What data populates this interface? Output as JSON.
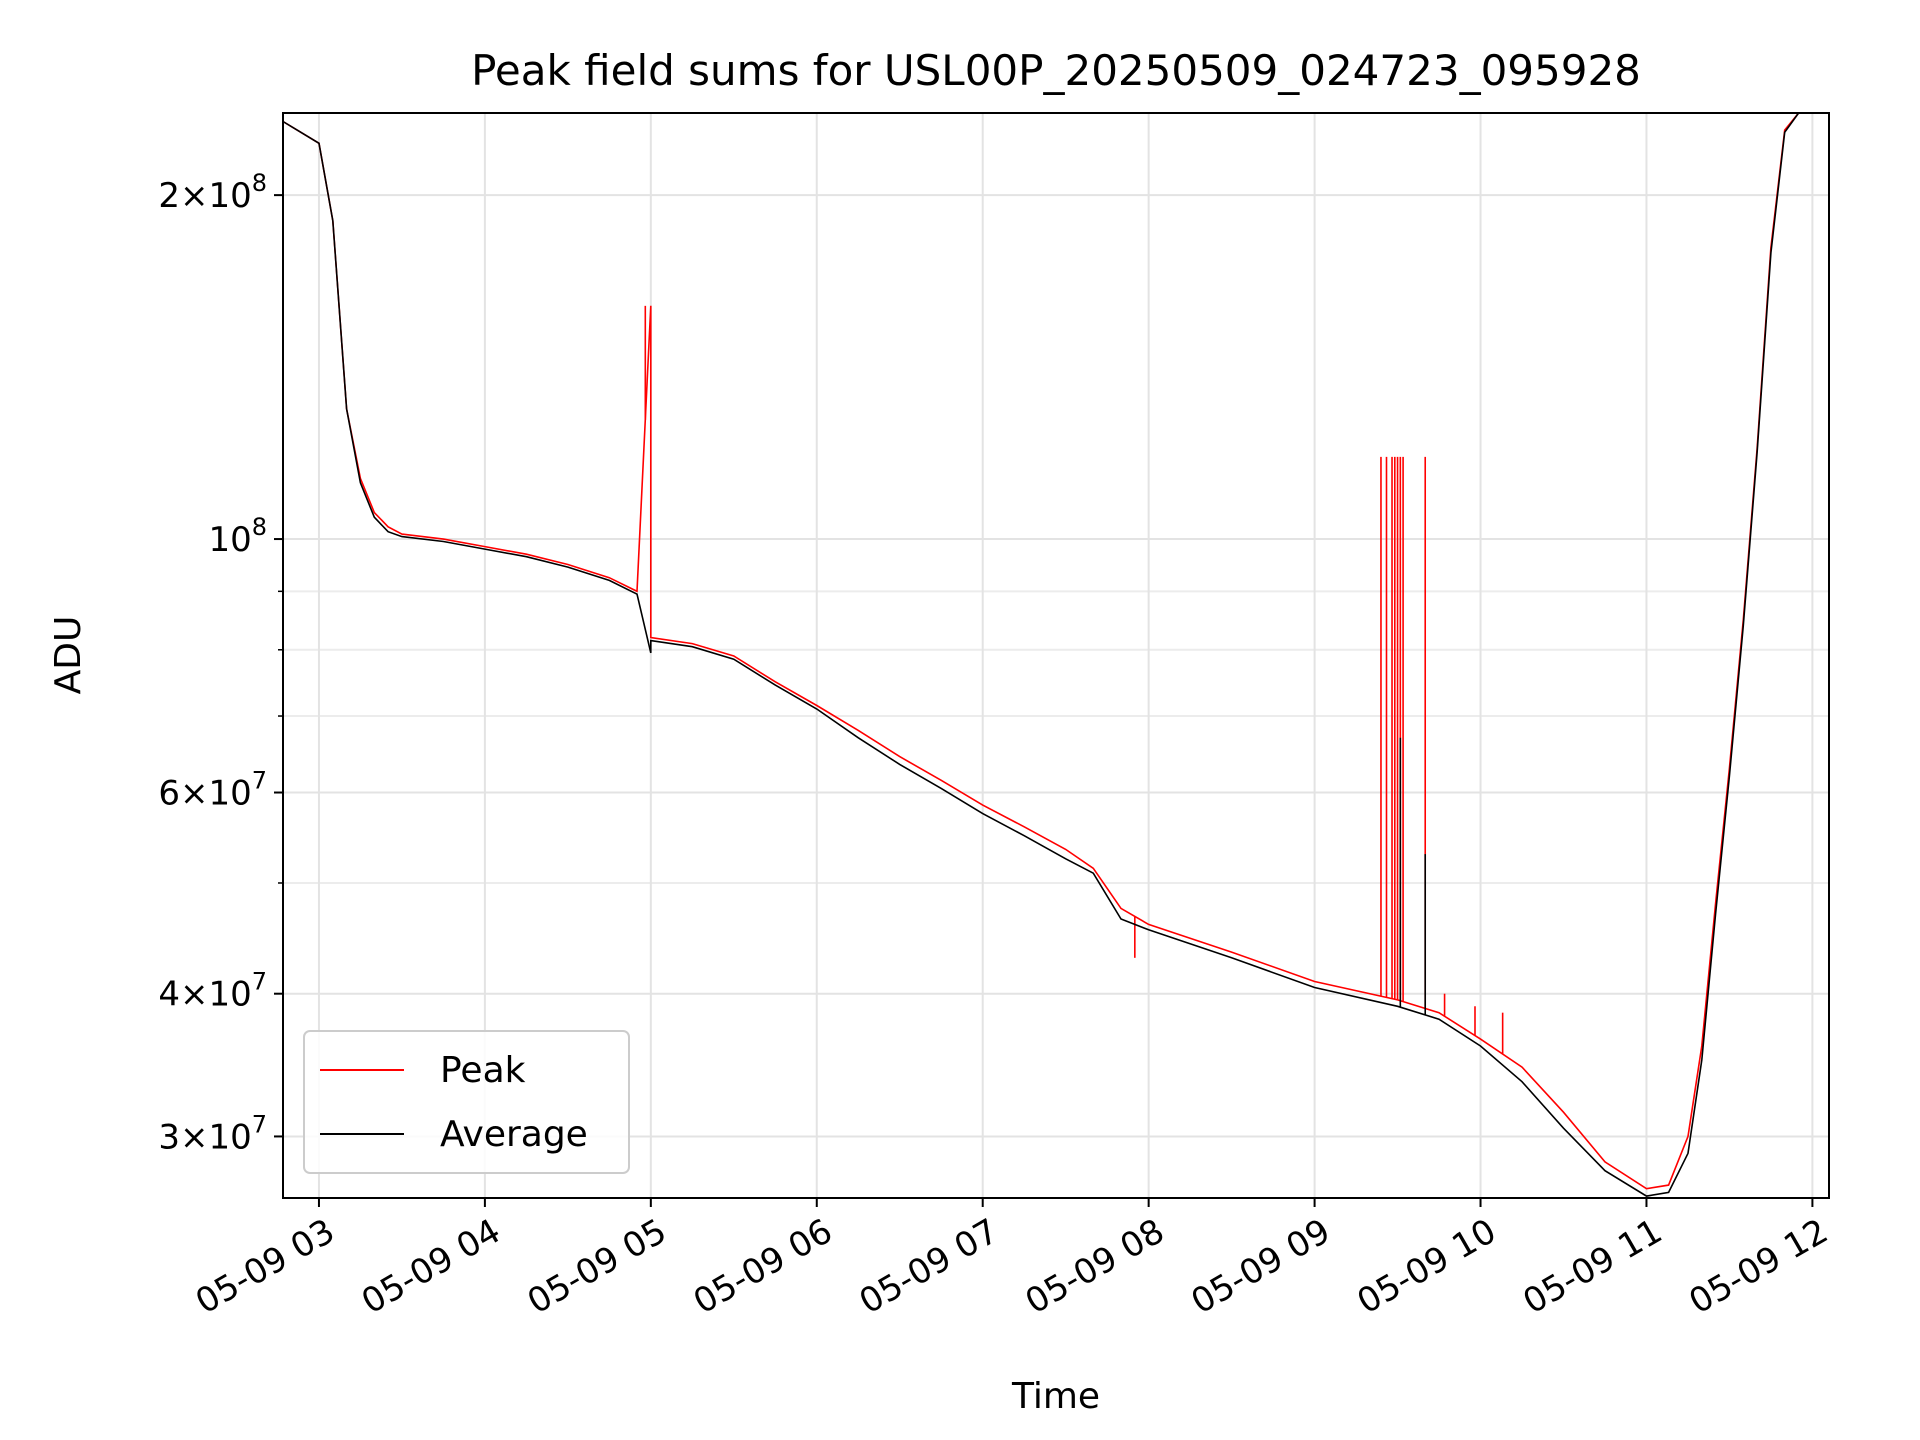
{
  "chart_data": {
    "type": "line",
    "title": "Peak field sums for USL00P_20250509_024723_095928",
    "xlabel": "Time",
    "ylabel": "ADU",
    "yscale": "log",
    "ylim": [
      26500000,
      236000000
    ],
    "xlim": [
      "05-09 02:47",
      "05-09 12:06"
    ],
    "x_ticks": [
      "05-09 03",
      "05-09 04",
      "05-09 05",
      "05-09 06",
      "05-09 07",
      "05-09 08",
      "05-09 09",
      "05-09 10",
      "05-09 11",
      "05-09 12"
    ],
    "y_major_ticks": [
      {
        "value": 200000000,
        "label": "2×10^8"
      },
      {
        "value": 100000000,
        "label": "10^8"
      },
      {
        "value": 60000000,
        "label": "6×10^7"
      },
      {
        "value": 40000000,
        "label": "4×10^7"
      },
      {
        "value": 30000000,
        "label": "3×10^7"
      }
    ],
    "y_minor_ticks": [
      50000000,
      70000000,
      80000000,
      90000000
    ],
    "grid": true,
    "legend_position": "lower-left",
    "series": [
      {
        "name": "Peak",
        "color": "#ff0000",
        "points": [
          [
            "05-09 02:47",
            232000000
          ],
          [
            "05-09 03:00",
            222000000
          ],
          [
            "05-09 03:05",
            190000000
          ],
          [
            "05-09 03:10",
            130000000
          ],
          [
            "05-09 03:15",
            113000000
          ],
          [
            "05-09 03:20",
            105500000
          ],
          [
            "05-09 03:25",
            102500000
          ],
          [
            "05-09 03:30",
            101000000
          ],
          [
            "05-09 03:45",
            100000000
          ],
          [
            "05-09 04:00",
            98500000
          ],
          [
            "05-09 04:15",
            97000000
          ],
          [
            "05-09 04:30",
            95000000
          ],
          [
            "05-09 04:45",
            92500000
          ],
          [
            "05-09 04:55",
            90000000
          ],
          [
            "05-09 05:00",
            160000000
          ],
          [
            "05-09 05:00",
            82000000
          ],
          [
            "05-09 05:15",
            81000000
          ],
          [
            "05-09 05:30",
            79000000
          ],
          [
            "05-09 05:45",
            75000000
          ],
          [
            "05-09 06:00",
            71500000
          ],
          [
            "05-09 06:15",
            68000000
          ],
          [
            "05-09 06:30",
            64500000
          ],
          [
            "05-09 06:45",
            61500000
          ],
          [
            "05-09 07:00",
            58500000
          ],
          [
            "05-09 07:15",
            56000000
          ],
          [
            "05-09 07:30",
            53500000
          ],
          [
            "05-09 07:40",
            51500000
          ],
          [
            "05-09 07:50",
            47500000
          ],
          [
            "05-09 08:00",
            46000000
          ],
          [
            "05-09 08:30",
            43500000
          ],
          [
            "05-09 09:00",
            41000000
          ],
          [
            "05-09 09:30",
            39500000
          ],
          [
            "05-09 09:45",
            38500000
          ],
          [
            "05-09 10:00",
            36500000
          ],
          [
            "05-09 10:15",
            34500000
          ],
          [
            "05-09 10:30",
            31500000
          ],
          [
            "05-09 10:45",
            28500000
          ],
          [
            "05-09 11:00",
            27000000
          ],
          [
            "05-09 11:08",
            27200000
          ],
          [
            "05-09 11:15",
            30000000
          ],
          [
            "05-09 11:20",
            36000000
          ],
          [
            "05-09 11:25",
            48000000
          ],
          [
            "05-09 11:30",
            63000000
          ],
          [
            "05-09 11:35",
            85000000
          ],
          [
            "05-09 11:40",
            120000000
          ],
          [
            "05-09 11:45",
            180000000
          ],
          [
            "05-09 11:50",
            228000000
          ],
          [
            "05-09 11:55",
            236000000
          ]
        ],
        "spikes": [
          {
            "x": "05-09 04:58",
            "y": 160000000
          },
          {
            "x": "05-09 07:55",
            "y": 43000000
          },
          {
            "x": "05-09 09:24",
            "y": 118000000
          },
          {
            "x": "05-09 09:26",
            "y": 118000000
          },
          {
            "x": "05-09 09:28",
            "y": 118000000
          },
          {
            "x": "05-09 09:29",
            "y": 118000000
          },
          {
            "x": "05-09 09:30",
            "y": 118000000
          },
          {
            "x": "05-09 09:31",
            "y": 118000000
          },
          {
            "x": "05-09 09:32",
            "y": 118000000
          },
          {
            "x": "05-09 09:40",
            "y": 118000000
          },
          {
            "x": "05-09 09:47",
            "y": 40000000
          },
          {
            "x": "05-09 09:58",
            "y": 39000000
          },
          {
            "x": "05-09 10:08",
            "y": 38500000
          }
        ]
      },
      {
        "name": "Average",
        "color": "#000000",
        "points": [
          [
            "05-09 02:47",
            232000000
          ],
          [
            "05-09 03:00",
            222000000
          ],
          [
            "05-09 03:05",
            190000000
          ],
          [
            "05-09 03:10",
            130000000
          ],
          [
            "05-09 03:15",
            112000000
          ],
          [
            "05-09 03:20",
            104500000
          ],
          [
            "05-09 03:25",
            101500000
          ],
          [
            "05-09 03:30",
            100500000
          ],
          [
            "05-09 03:45",
            99500000
          ],
          [
            "05-09 04:00",
            98000000
          ],
          [
            "05-09 04:15",
            96500000
          ],
          [
            "05-09 04:30",
            94500000
          ],
          [
            "05-09 04:45",
            92000000
          ],
          [
            "05-09 04:55",
            89500000
          ],
          [
            "05-09 05:00",
            79500000
          ],
          [
            "05-09 05:00",
            81500000
          ],
          [
            "05-09 05:15",
            80500000
          ],
          [
            "05-09 05:30",
            78500000
          ],
          [
            "05-09 05:45",
            74500000
          ],
          [
            "05-09 06:00",
            71000000
          ],
          [
            "05-09 06:15",
            67000000
          ],
          [
            "05-09 06:30",
            63500000
          ],
          [
            "05-09 06:45",
            60500000
          ],
          [
            "05-09 07:00",
            57500000
          ],
          [
            "05-09 07:15",
            55000000
          ],
          [
            "05-09 07:30",
            52500000
          ],
          [
            "05-09 07:40",
            51000000
          ],
          [
            "05-09 07:50",
            46500000
          ],
          [
            "05-09 08:00",
            45500000
          ],
          [
            "05-09 08:30",
            43000000
          ],
          [
            "05-09 09:00",
            40500000
          ],
          [
            "05-09 09:30",
            39000000
          ],
          [
            "05-09 09:45",
            38000000
          ],
          [
            "05-09 10:00",
            36000000
          ],
          [
            "05-09 10:15",
            33500000
          ],
          [
            "05-09 10:30",
            30500000
          ],
          [
            "05-09 10:45",
            28000000
          ],
          [
            "05-09 11:00",
            26600000
          ],
          [
            "05-09 11:08",
            26800000
          ],
          [
            "05-09 11:15",
            29000000
          ],
          [
            "05-09 11:20",
            35000000
          ],
          [
            "05-09 11:25",
            47000000
          ],
          [
            "05-09 11:30",
            62000000
          ],
          [
            "05-09 11:35",
            84000000
          ],
          [
            "05-09 11:40",
            119000000
          ],
          [
            "05-09 11:45",
            178000000
          ],
          [
            "05-09 11:50",
            227000000
          ],
          [
            "05-09 11:55",
            236000000
          ]
        ],
        "spikes": [
          {
            "x": "05-09 09:31",
            "y": 67000000
          },
          {
            "x": "05-09 09:40",
            "y": 53000000
          }
        ]
      }
    ]
  }
}
